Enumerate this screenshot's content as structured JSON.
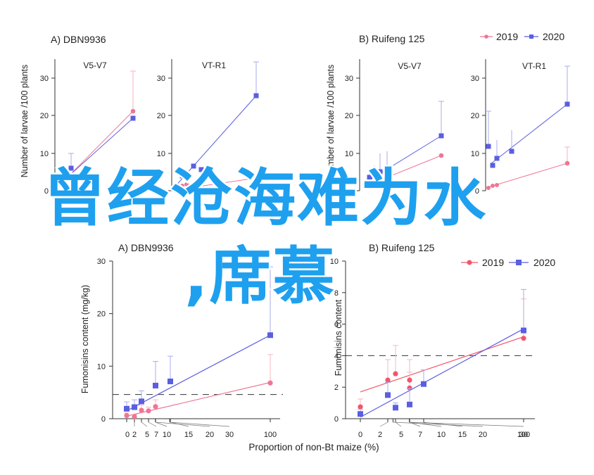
{
  "colors": {
    "s2019": "#f07593",
    "s2020": "#5a5ee0",
    "s2019_bottom": "#f4556a",
    "overlay": "#1ea0ef"
  },
  "overlay": {
    "line1": "曾经沧海难为水",
    "line2": ",席慕"
  },
  "top": {
    "ylabel": "Number of larvae /100 plants",
    "legend": [
      {
        "label": "2019",
        "marker": "circle"
      },
      {
        "label": "2020",
        "marker": "square"
      }
    ],
    "panels": [
      {
        "group": "A)",
        "name": "DBN9936"
      },
      {
        "group": "B)",
        "name": "Ruifeng 125"
      }
    ],
    "subplots": [
      {
        "title": "V5-V7"
      },
      {
        "title": "VT-R1"
      },
      {
        "title": "V5-V7"
      },
      {
        "title": "VT-R1"
      }
    ]
  },
  "chart_data": [
    {
      "type": "line",
      "title": "A) DBN9936",
      "xlabel": "Proportion of non-Bt maize (%)",
      "ylabel": "Fumonisins content (mg/kg)",
      "x_ticks": [
        "0",
        "2",
        "5",
        "7",
        "10",
        "15",
        "20",
        "30",
        "100"
      ],
      "y_ticks": [
        "0",
        "10",
        "20",
        "30"
      ],
      "ylim": [
        0,
        30
      ],
      "threshold": 4.6,
      "series": [
        {
          "name": "2019",
          "marker": "circle",
          "points": [
            [
              0,
              0.6
            ],
            [
              2,
              0.4
            ],
            [
              5,
              1.6
            ],
            [
              7,
              1.5
            ],
            [
              10,
              2.3
            ],
            [
              100,
              6.8
            ]
          ],
          "err": [
            0.5,
            0.4,
            1.0,
            0.7,
            1.3,
            5.4
          ],
          "fit": [
            [
              0,
              0.5
            ],
            [
              100,
              6.9
            ]
          ]
        },
        {
          "name": "2020",
          "marker": "square",
          "points": [
            [
              0,
              1.9
            ],
            [
              2,
              2.2
            ],
            [
              5,
              3.3
            ],
            [
              10,
              6.3
            ],
            [
              15,
              7.1
            ],
            [
              100,
              15.9
            ]
          ],
          "err": [
            1.3,
            1.4,
            2.0,
            4.6,
            4.8,
            13.0
          ],
          "fit": [
            [
              0,
              1.5
            ],
            [
              100,
              15.9
            ]
          ]
        }
      ],
      "legend": {
        "position": "top-right"
      }
    },
    {
      "type": "line",
      "title": "B) Ruifeng 125",
      "xlabel": "",
      "ylabel": "Fumonisins content",
      "x_ticks": [
        "0",
        "2",
        "5",
        "7",
        "10",
        "15",
        "20",
        "30",
        "100"
      ],
      "y_ticks": [
        "0",
        "2",
        "4",
        "6",
        "8",
        "10"
      ],
      "ylim": [
        0,
        10
      ],
      "threshold": 4.0,
      "series": [
        {
          "name": "2019",
          "marker": "circle",
          "points": [
            [
              0,
              0.75
            ],
            [
              2,
              2.45
            ],
            [
              5,
              2.85
            ],
            [
              7,
              1.95
            ],
            [
              10,
              2.45
            ],
            [
              100,
              5.1
            ]
          ],
          "err": [
            0.5,
            1.3,
            1.8,
            1.0,
            1.3,
            2.5
          ],
          "fit": [
            [
              0,
              1.7
            ],
            [
              100,
              5.2
            ]
          ]
        },
        {
          "name": "2020",
          "marker": "square",
          "points": [
            [
              0,
              0.3
            ],
            [
              2,
              1.5
            ],
            [
              5,
              0.7
            ],
            [
              10,
              0.9
            ],
            [
              15,
              2.2
            ],
            [
              100,
              5.6
            ]
          ],
          "err": [
            0.3,
            0.8,
            0.3,
            1.0,
            0.9,
            2.6
          ],
          "fit": [
            [
              0,
              0.1
            ],
            [
              100,
              5.7
            ]
          ]
        }
      ],
      "legend": {
        "position": "top-right",
        "labels": [
          "2019",
          "2020"
        ]
      }
    }
  ]
}
